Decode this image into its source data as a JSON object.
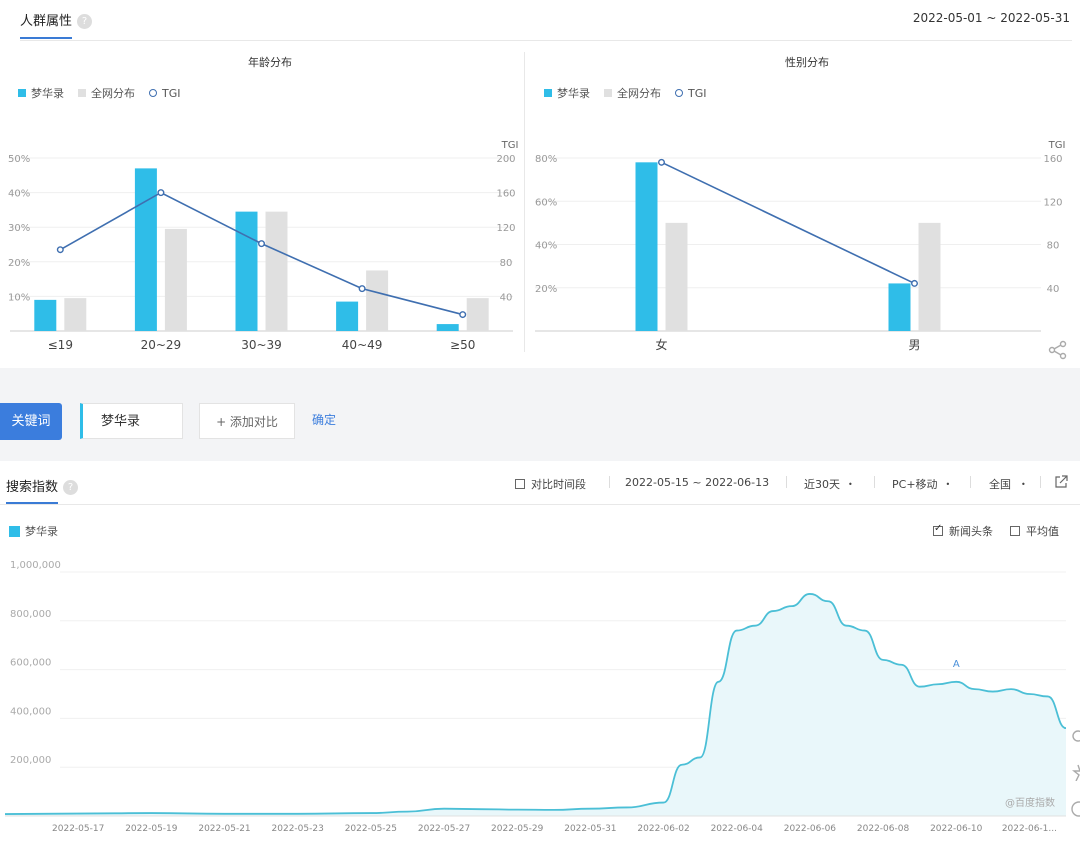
{
  "header": {
    "title": "人群属性",
    "help": "?",
    "date_range": "2022-05-01 ~ 2022-05-31"
  },
  "age_panel": {
    "title": "年龄分布",
    "legend": [
      "梦华录",
      "全网分布",
      "TGI"
    ],
    "tgi_axis_label": "TGI"
  },
  "gender_panel": {
    "title": "性别分布",
    "legend": [
      "梦华录",
      "全网分布",
      "TGI"
    ],
    "tgi_axis_label": "TGI"
  },
  "keyword_bar": {
    "keyword_button": "关键词",
    "keyword_value": "梦华录",
    "add_compare": "+ 添加对比",
    "confirm": "确定"
  },
  "search_index": {
    "title": "搜索指数",
    "help": "?",
    "compare_period": "对比时间段",
    "date_range": "2022-05-15 ~ 2022-06-13",
    "period": "近30天",
    "device": "PC+移动",
    "region": "全国",
    "legend_item": "梦华录",
    "news_headlines": "新闻头条",
    "average": "平均值",
    "watermark": "@百度指数",
    "annotation": "A"
  },
  "colors": {
    "brand_blue": "#2fbde8",
    "dist_gray": "#e0e0e0",
    "tgi_line": "#3f6fb0",
    "accent": "#3b7ddd",
    "area_line": "#4bbfd6"
  },
  "chart_data": [
    {
      "type": "bar",
      "title": "年龄分布",
      "categories": [
        "≤19",
        "20~29",
        "30~39",
        "40~49",
        "≥50"
      ],
      "series": [
        {
          "name": "梦华录",
          "values": [
            9,
            47,
            34.5,
            8.5,
            2
          ]
        },
        {
          "name": "全网分布",
          "values": [
            9.5,
            29.5,
            34.5,
            17.5,
            9.5
          ]
        },
        {
          "name": "TGI",
          "values": [
            94,
            160,
            101,
            49,
            19
          ]
        }
      ],
      "ylim": [
        0,
        50
      ],
      "y_ticks": [
        "10%",
        "20%",
        "30%",
        "40%",
        "50%"
      ],
      "y2lim": [
        0,
        200
      ],
      "y2_ticks": [
        "40",
        "80",
        "120",
        "160",
        "200"
      ],
      "y2label": "TGI"
    },
    {
      "type": "bar",
      "title": "性别分布",
      "categories": [
        "女",
        "男"
      ],
      "series": [
        {
          "name": "梦华录",
          "values": [
            78,
            22
          ]
        },
        {
          "name": "全网分布",
          "values": [
            50,
            50
          ]
        },
        {
          "name": "TGI",
          "values": [
            156,
            44
          ]
        }
      ],
      "ylim": [
        0,
        80
      ],
      "y_ticks": [
        "20%",
        "40%",
        "60%",
        "80%"
      ],
      "y2lim": [
        0,
        160
      ],
      "y2_ticks": [
        "40",
        "80",
        "120",
        "160"
      ],
      "y2label": "TGI"
    },
    {
      "type": "area",
      "series": [
        {
          "name": "梦华录"
        }
      ],
      "ylim": [
        0,
        1000000
      ],
      "y_ticks": [
        "200,000",
        "400,000",
        "600,000",
        "800,000",
        "1,000,000"
      ],
      "x_ticks": [
        "2022-05-17",
        "2022-05-19",
        "2022-05-21",
        "2022-05-23",
        "2022-05-25",
        "2022-05-27",
        "2022-05-29",
        "2022-05-31",
        "2022-06-02",
        "2022-06-04",
        "2022-06-06",
        "2022-06-08",
        "2022-06-10",
        "2022-06-1..."
      ],
      "x": [
        "2022-05-15",
        "2022-05-17",
        "2022-05-19",
        "2022-05-21",
        "2022-05-23",
        "2022-05-25",
        "2022-05-26",
        "2022-05-27",
        "2022-05-28",
        "2022-05-29",
        "2022-05-30",
        "2022-05-31",
        "2022-06-01",
        "2022-06-02",
        "2022-06-02.5",
        "2022-06-03",
        "2022-06-03.5",
        "2022-06-04",
        "2022-06-04.5",
        "2022-06-05",
        "2022-06-05.5",
        "2022-06-06",
        "2022-06-06.5",
        "2022-06-07",
        "2022-06-07.5",
        "2022-06-08",
        "2022-06-08.5",
        "2022-06-09",
        "2022-06-09.5",
        "2022-06-10",
        "2022-06-10.5",
        "2022-06-11",
        "2022-06-11.5",
        "2022-06-12",
        "2022-06-12.5",
        "2022-06-13"
      ],
      "values": [
        8000,
        10000,
        12000,
        9000,
        9000,
        12000,
        18000,
        30000,
        28000,
        26000,
        25000,
        30000,
        35000,
        55000,
        210000,
        240000,
        550000,
        760000,
        780000,
        840000,
        860000,
        910000,
        880000,
        780000,
        760000,
        640000,
        620000,
        530000,
        540000,
        550000,
        520000,
        510000,
        520000,
        500000,
        490000,
        360000
      ]
    }
  ]
}
